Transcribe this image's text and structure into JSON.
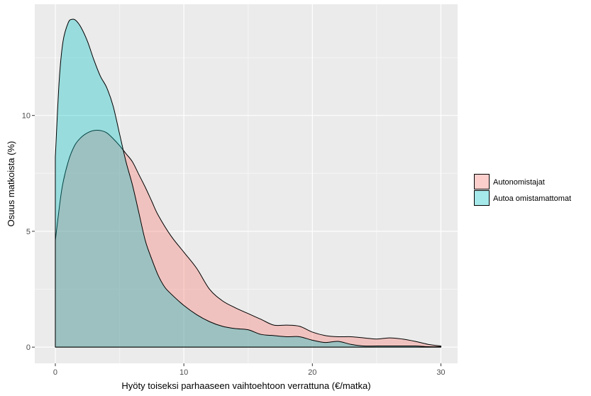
{
  "chart_data": {
    "type": "area",
    "title": "",
    "xlabel": "Hyöty toiseksi parhaaseen vaihtoehtoon verrattuna (€/matka)",
    "ylabel": "Osuus matkoista (%)",
    "xlim": [
      -1.6,
      31.3
    ],
    "ylim": [
      -0.7,
      14.8
    ],
    "x_ticks": [
      0,
      10,
      20,
      30
    ],
    "x_tick_labels": [
      "0",
      "10",
      "20",
      "30"
    ],
    "y_ticks": [
      0,
      5,
      10
    ],
    "y_tick_labels": [
      "0",
      "5",
      "10"
    ],
    "grid": true,
    "legend_position": "right",
    "colors": {
      "panel_bg": "#ebebeb",
      "grid_major": "#ffffff",
      "grid_minor": "#f5f5f5",
      "outline": "#000000"
    },
    "series": [
      {
        "name": "Autonomistajat",
        "color": "#f8766d",
        "fill_opacity": 0.35,
        "x": [
          0,
          0.5,
          1,
          1.5,
          2,
          2.5,
          3,
          3.5,
          4,
          4.5,
          5,
          5.5,
          6,
          6.5,
          7,
          7.5,
          8,
          9,
          10,
          11,
          12,
          13,
          14,
          15,
          16,
          17,
          18,
          19,
          20,
          21,
          22,
          23,
          24,
          25,
          26,
          27,
          28,
          29,
          30
        ],
        "values": [
          4.6,
          6.8,
          8.0,
          8.7,
          9.05,
          9.25,
          9.35,
          9.35,
          9.25,
          9.0,
          8.7,
          8.35,
          8.0,
          7.45,
          6.9,
          6.3,
          5.7,
          4.8,
          4.1,
          3.4,
          2.5,
          2.0,
          1.7,
          1.45,
          1.2,
          0.95,
          0.95,
          0.9,
          0.65,
          0.5,
          0.45,
          0.45,
          0.4,
          0.35,
          0.4,
          0.35,
          0.25,
          0.12,
          0.05
        ]
      },
      {
        "name": "Autoa omistamattomat",
        "color": "#00bfc4",
        "fill_opacity": 0.35,
        "x": [
          0,
          0.3,
          0.6,
          1,
          1.3,
          1.6,
          2,
          2.5,
          3,
          3.5,
          4,
          4.5,
          5,
          5.5,
          6,
          6.5,
          7,
          7.5,
          8,
          8.5,
          9,
          10,
          11,
          12,
          13,
          14,
          15,
          16,
          17,
          18,
          19,
          20,
          21,
          22,
          23,
          24,
          25,
          26,
          27,
          28,
          29,
          30
        ],
        "values": [
          8.2,
          11.5,
          13.2,
          14.0,
          14.15,
          14.1,
          13.8,
          13.2,
          12.4,
          11.7,
          11.2,
          10.4,
          9.2,
          8.0,
          7.0,
          5.8,
          4.6,
          3.8,
          3.1,
          2.6,
          2.3,
          1.8,
          1.4,
          1.1,
          0.9,
          0.8,
          0.75,
          0.55,
          0.5,
          0.45,
          0.45,
          0.3,
          0.2,
          0.25,
          0.12,
          0.05,
          0.05,
          0.05,
          0.05,
          0.05,
          0.02,
          0.02
        ]
      }
    ]
  }
}
